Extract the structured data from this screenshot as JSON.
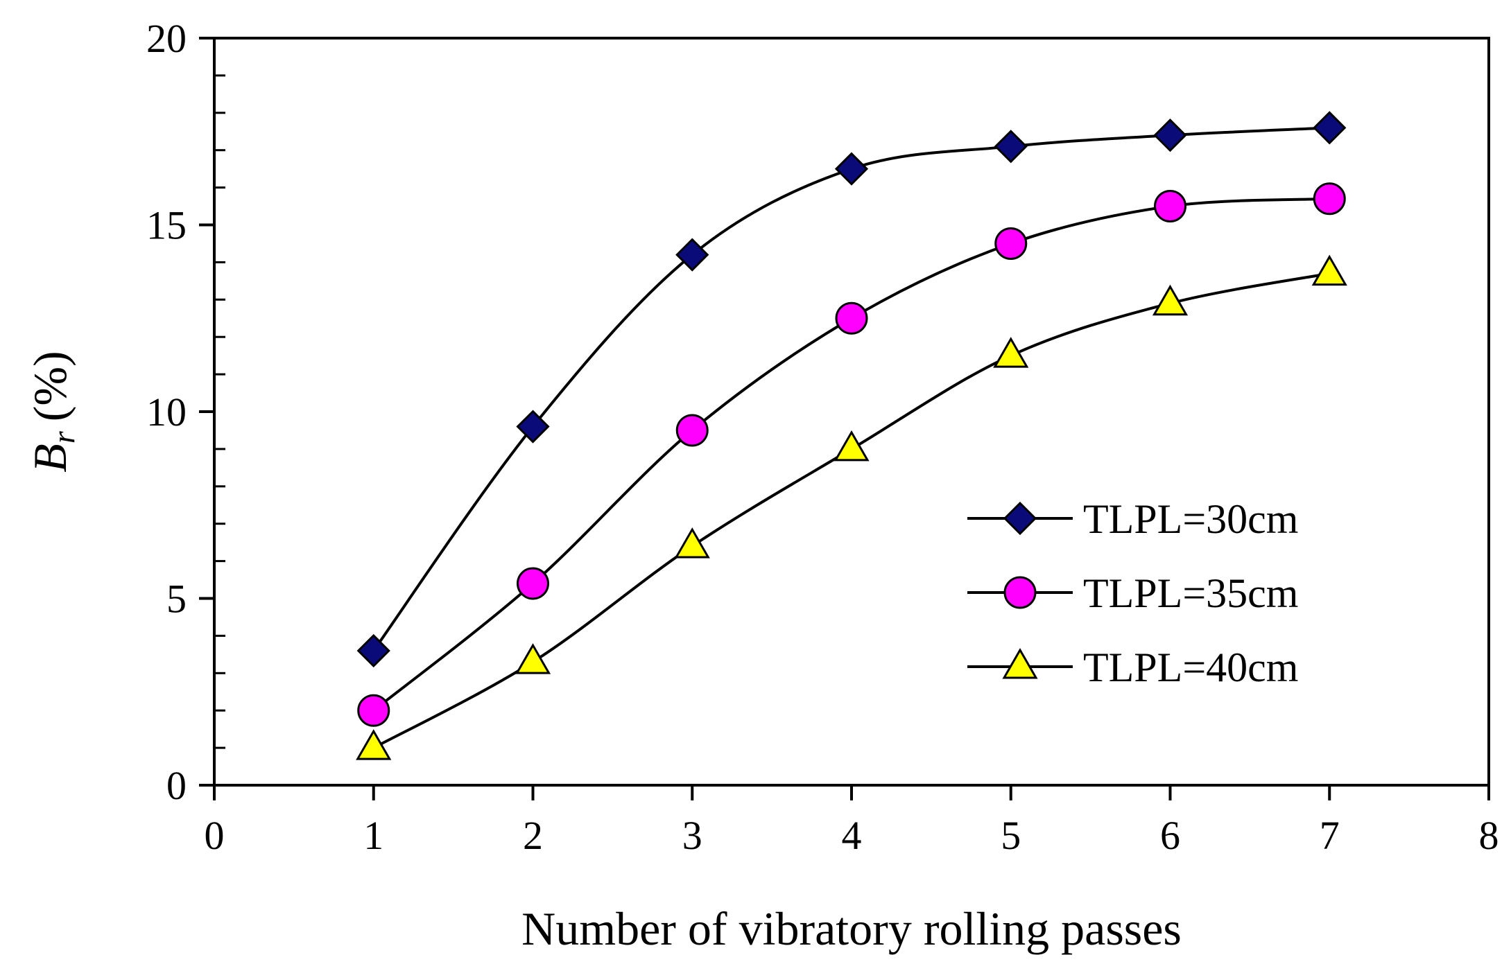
{
  "chart_data": {
    "type": "line",
    "title": "",
    "xlabel": "Number of vibratory rolling passes",
    "ylabel": {
      "symbol": "B",
      "subscript": "r",
      "unit": "(%)"
    },
    "xlim": [
      0,
      8
    ],
    "ylim": [
      0,
      20
    ],
    "x_ticks": [
      0,
      1,
      2,
      3,
      4,
      5,
      6,
      7,
      8
    ],
    "y_ticks": [
      0,
      5,
      10,
      15,
      20
    ],
    "x_tick_labels": [
      "0",
      "1",
      "2",
      "3",
      "4",
      "5",
      "6",
      "7",
      "8"
    ],
    "y_tick_labels": [
      "0",
      "5",
      "10",
      "15",
      "20"
    ],
    "grid": false,
    "smooth": true,
    "legend_position": "lower-right",
    "series": [
      {
        "name": "TLPL=30cm",
        "marker": "diamond",
        "color": "#0a0a78",
        "x": [
          1,
          2,
          3,
          4,
          5,
          6,
          7
        ],
        "values": [
          3.6,
          9.6,
          14.2,
          16.5,
          17.1,
          17.4,
          17.6
        ]
      },
      {
        "name": "TLPL=35cm",
        "marker": "circle",
        "color": "#ff00ff",
        "x": [
          1,
          2,
          3,
          4,
          5,
          6,
          7
        ],
        "values": [
          2.0,
          5.4,
          9.5,
          12.5,
          14.5,
          15.5,
          15.7
        ]
      },
      {
        "name": "TLPL=40cm",
        "marker": "triangle",
        "color": "#ffff00",
        "x": [
          1,
          2,
          3,
          4,
          5,
          6,
          7
        ],
        "values": [
          1.0,
          3.3,
          6.4,
          9.0,
          11.5,
          12.9,
          13.7
        ]
      }
    ]
  }
}
